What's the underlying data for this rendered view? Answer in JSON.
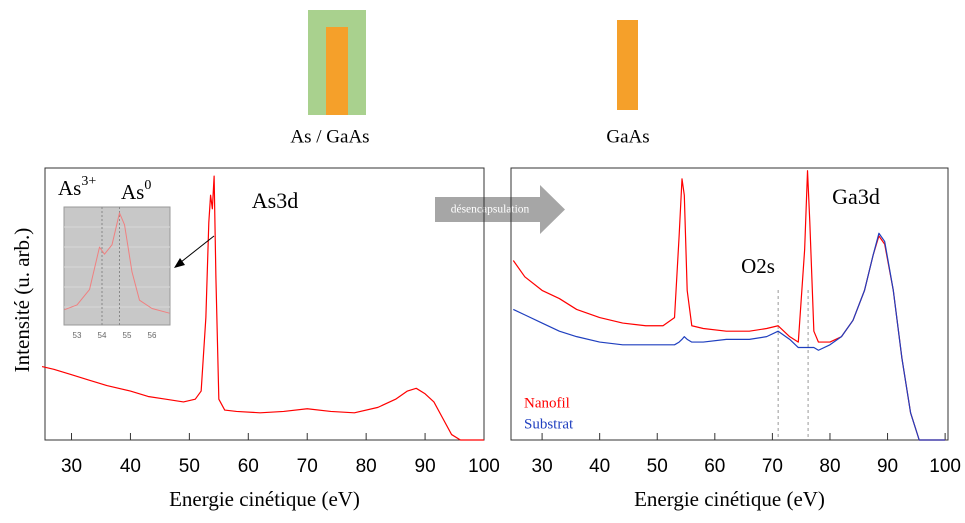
{
  "transition_label": "désencapsulation",
  "chart_data": [
    {
      "type": "line",
      "sample_label": "As / GaAs",
      "ylabel": "Intensité (u. arb.)",
      "xlabel": "Energie cinétique (eV)",
      "xlim": [
        25.5,
        100
      ],
      "ylim": [
        0,
        100
      ],
      "xticks": [
        30,
        40,
        50,
        60,
        70,
        80,
        90,
        100
      ],
      "annotations": [
        "As3d"
      ],
      "x": [
        25,
        27,
        30,
        33,
        36,
        40,
        43,
        46,
        49,
        51,
        52,
        52.8,
        53.3,
        53.6,
        53.9,
        54.2,
        54.5,
        55,
        56,
        58,
        62,
        66,
        70,
        74,
        78,
        82,
        85,
        87,
        88.5,
        90,
        91.5,
        93,
        94.5,
        96,
        100
      ],
      "series": [
        {
          "color": "#ff0000",
          "values": [
            27,
            26,
            24,
            22,
            20,
            18,
            16,
            15,
            14,
            15,
            18,
            45,
            80,
            90,
            85,
            97,
            60,
            15,
            11,
            10.5,
            10,
            10.5,
            11.5,
            10.5,
            10,
            12,
            15,
            18,
            19,
            17,
            14,
            8,
            2,
            0,
            0
          ]
        }
      ],
      "inset": {
        "type": "line",
        "xlim": [
          52.48,
          56.72
        ],
        "ylim": [
          0,
          100
        ],
        "xticks": [
          53,
          54,
          55,
          56
        ],
        "peak_labels": [
          {
            "text": "As",
            "sup": "3+"
          },
          {
            "text": "As",
            "sup": "0"
          }
        ],
        "reference_lines": [
          54.0,
          54.7
        ],
        "x": [
          52.5,
          53,
          53.5,
          53.9,
          54.1,
          54.4,
          54.7,
          54.9,
          55.2,
          55.5,
          56,
          56.7
        ],
        "series": [
          {
            "color": "#f08080",
            "values": [
              13,
              17,
              30,
              66,
              60,
              68,
              95,
              85,
              45,
              21,
              14,
              10
            ]
          }
        ]
      }
    },
    {
      "type": "line",
      "sample_label": "GaAs",
      "xlabel": "Energie cinétique (eV)",
      "xlim": [
        24.6,
        100.5
      ],
      "ylim": [
        0,
        100
      ],
      "xticks": [
        30,
        40,
        50,
        60,
        70,
        80,
        90,
        100
      ],
      "annotations": [
        "O2s",
        "Ga3d"
      ],
      "reference_lines": [
        71,
        76.2
      ],
      "x": [
        25,
        27,
        30,
        33,
        36,
        40,
        44,
        48,
        51,
        53,
        53.8,
        54.3,
        54.7,
        55.2,
        56,
        58,
        62,
        66,
        69,
        71,
        73,
        74.5,
        75.6,
        76.1,
        76.5,
        77.2,
        78,
        80,
        82,
        84,
        86,
        87.5,
        88.5,
        89.5,
        91,
        92.5,
        94,
        95.5,
        97,
        100
      ],
      "series": [
        {
          "name": "Nanofil",
          "color": "#ff0000",
          "values": [
            66,
            60,
            55,
            52,
            48,
            45,
            43,
            42,
            42,
            45,
            75,
            96,
            90,
            55,
            42,
            41,
            40,
            40,
            41,
            42,
            38,
            36,
            70,
            99,
            80,
            40,
            36,
            36,
            38,
            44,
            55,
            68,
            75,
            72,
            55,
            30,
            10,
            0,
            0,
            0
          ]
        },
        {
          "name": "Substrat",
          "color": "#1f3fbf",
          "values": [
            48,
            46,
            43,
            40,
            38,
            36,
            35,
            35,
            35,
            35,
            36,
            37,
            38,
            37,
            36,
            36,
            37,
            37,
            38,
            40,
            37,
            34,
            34,
            34,
            34,
            34,
            33,
            35,
            38,
            44,
            55,
            68,
            76,
            73,
            55,
            30,
            10,
            0,
            0,
            0
          ]
        }
      ]
    }
  ]
}
